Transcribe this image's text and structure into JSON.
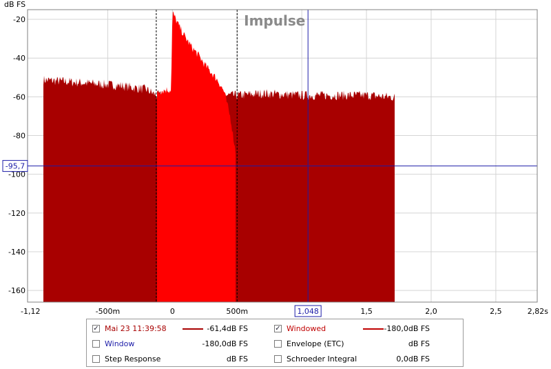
{
  "chart_data": {
    "type": "area",
    "title": "Impulse",
    "ylabel": "dB FS",
    "xlim": [
      -1.12,
      2.82
    ],
    "ylim": [
      -166,
      -15
    ],
    "x_ticks": [
      {
        "value": -1.12,
        "label": "-1,12"
      },
      {
        "value": -0.5,
        "label": "-500m"
      },
      {
        "value": 0,
        "label": "0"
      },
      {
        "value": 0.5,
        "label": "500m"
      },
      {
        "value": 1.0,
        "label": ""
      },
      {
        "value": 1.5,
        "label": "1,5"
      },
      {
        "value": 2.0,
        "label": "2,0"
      },
      {
        "value": 2.5,
        "label": "2,5"
      },
      {
        "value": 2.82,
        "label": "2,82s"
      }
    ],
    "y_ticks": [
      {
        "value": -20,
        "label": "-20"
      },
      {
        "value": -40,
        "label": "-40"
      },
      {
        "value": -60,
        "label": "-60"
      },
      {
        "value": -80,
        "label": "-80"
      },
      {
        "value": -100,
        "label": "-100"
      },
      {
        "value": -120,
        "label": "-120"
      },
      {
        "value": -140,
        "label": "-140"
      },
      {
        "value": -160,
        "label": "-160"
      }
    ],
    "cursor": {
      "x": 1.048,
      "x_label": "1,048",
      "y": -95.7,
      "y_label": "-95,7"
    },
    "window_markers": [
      -0.125,
      0.5
    ],
    "series": [
      {
        "name": "Mai 23 11:39:58",
        "color": "#a80000",
        "x_start": -1.0,
        "x_end": 1.72,
        "envelope": [
          [
            -1.0,
            -52
          ],
          [
            -0.8,
            -53
          ],
          [
            -0.6,
            -54
          ],
          [
            -0.4,
            -55
          ],
          [
            -0.2,
            -57
          ],
          [
            -0.125,
            -60
          ],
          [
            -0.1,
            -60
          ],
          [
            0.0,
            -60
          ],
          [
            0.5,
            -60
          ],
          [
            0.7,
            -59
          ],
          [
            1.0,
            -60
          ],
          [
            1.3,
            -60
          ],
          [
            1.5,
            -60
          ],
          [
            1.72,
            -61
          ]
        ]
      },
      {
        "name": "Windowed",
        "color": "#ff0000",
        "x_start": -0.12,
        "x_end": 0.49,
        "envelope": [
          [
            -0.12,
            -58
          ],
          [
            -0.05,
            -57
          ],
          [
            -0.01,
            -57
          ],
          [
            0.0,
            -17
          ],
          [
            0.05,
            -24
          ],
          [
            0.1,
            -30
          ],
          [
            0.15,
            -35
          ],
          [
            0.2,
            -39
          ],
          [
            0.25,
            -44
          ],
          [
            0.3,
            -48
          ],
          [
            0.35,
            -52
          ],
          [
            0.4,
            -58
          ],
          [
            0.45,
            -72
          ],
          [
            0.49,
            -90
          ]
        ]
      }
    ]
  },
  "legend": {
    "rows": [
      [
        {
          "checked": true,
          "label": "Mai 23 11:39:58",
          "color": "#a80000",
          "line": true,
          "value": "-61,4dB FS"
        },
        {
          "checked": true,
          "label": "Windowed",
          "color": "#c00000",
          "line": true,
          "value": "-180,0dB FS"
        }
      ],
      [
        {
          "checked": false,
          "label": "Window",
          "color": "#1c1ca8",
          "line": false,
          "value": "-180,0dB FS"
        },
        {
          "checked": false,
          "label": "Envelope (ETC)",
          "color": "#000000",
          "line": false,
          "value": "dB FS"
        }
      ],
      [
        {
          "checked": false,
          "label": "Step Response",
          "color": "#000000",
          "line": false,
          "value": "dB FS"
        },
        {
          "checked": false,
          "label": "Schroeder Integral",
          "color": "#000000",
          "line": false,
          "value": "0,0dB FS"
        }
      ]
    ]
  }
}
